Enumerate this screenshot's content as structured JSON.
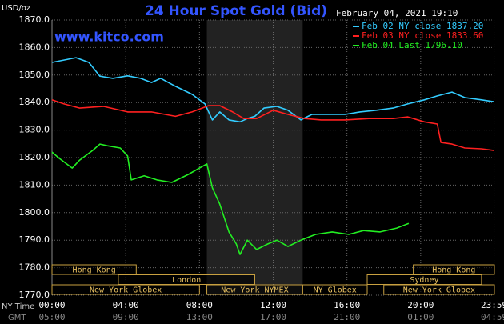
{
  "chart_data": {
    "type": "line",
    "title": "24 Hour Spot Gold (Bid)",
    "subtitle": "www.kitco.com",
    "y_label": "USD/oz",
    "timestamp": "February 04, 2021 19:10",
    "x_label": "NY Time",
    "x2_label": "GMT",
    "xlim": [
      0,
      24
    ],
    "ylim": [
      1770,
      1870
    ],
    "grid": true,
    "yticks": [
      {
        "value": 1770,
        "label": "1770.0"
      },
      {
        "value": 1780,
        "label": "1780.0"
      },
      {
        "value": 1790,
        "label": "1790.0"
      },
      {
        "value": 1800,
        "label": "1800.0"
      },
      {
        "value": 1810,
        "label": "1810.0"
      },
      {
        "value": 1820,
        "label": "1820.0"
      },
      {
        "value": 1830,
        "label": "1830.0"
      },
      {
        "value": 1840,
        "label": "1840.0"
      },
      {
        "value": 1850,
        "label": "1850.0"
      },
      {
        "value": 1860,
        "label": "1860.0"
      },
      {
        "value": 1870,
        "label": "1870.0"
      }
    ],
    "xticks": [
      {
        "value": 0,
        "label": "00:00"
      },
      {
        "value": 4,
        "label": "04:00"
      },
      {
        "value": 8,
        "label": "08:00"
      },
      {
        "value": 12,
        "label": "12:00"
      },
      {
        "value": 16,
        "label": "16:00"
      },
      {
        "value": 20,
        "label": "20:00"
      },
      {
        "value": 23.98,
        "label": "23:59"
      }
    ],
    "x2ticks": [
      {
        "value": 0,
        "label": "05:00"
      },
      {
        "value": 4,
        "label": "09:00"
      },
      {
        "value": 8,
        "label": "13:00"
      },
      {
        "value": 12,
        "label": "17:00"
      },
      {
        "value": 16,
        "label": "21:00"
      },
      {
        "value": 20,
        "label": "01:00"
      },
      {
        "value": 23.98,
        "label": "04:59"
      }
    ],
    "shaded_xlim": [
      8.4,
      13.6
    ],
    "sessions": [
      [
        {
          "label": "Hong Kong",
          "start": 0,
          "end": 4.57
        },
        {
          "label": "Hong Kong",
          "start": 19.6,
          "end": 24
        }
      ],
      [
        {
          "label": "London",
          "start": 3.6,
          "end": 11.0
        },
        {
          "label": "Sydney",
          "start": 17.1,
          "end": 23.3
        }
      ],
      [
        {
          "label": "New York Globex",
          "start": 0,
          "end": 8.0
        },
        {
          "label": "New York NYMEX",
          "start": 8.4,
          "end": 13.6
        },
        {
          "label": "NY Globex",
          "start": 13.6,
          "end": 17.1
        },
        {
          "label": "New York Globex",
          "start": 18.0,
          "end": 24
        }
      ]
    ],
    "series": [
      {
        "name": "Feb 02 NY close 1837.20",
        "color": "#33ccff",
        "x": [
          0,
          1.3,
          2,
          2.6,
          3.3,
          4.1,
          4.8,
          5.4,
          5.9,
          6.7,
          7.6,
          8.3,
          8.7,
          9.1,
          9.6,
          10.2,
          10.6,
          11,
          11.5,
          12.2,
          12.8,
          13.5,
          14.1,
          15,
          15.9,
          16.7,
          17.6,
          18.5,
          19.3,
          20.2,
          20.9,
          21.7,
          22.4,
          23.3,
          23.98
        ],
        "values": [
          1854.6,
          1856.3,
          1854.6,
          1849.6,
          1848.8,
          1849.7,
          1848.8,
          1847.3,
          1848.8,
          1845.9,
          1843,
          1839.5,
          1833.7,
          1836.6,
          1833.7,
          1833,
          1834.2,
          1835,
          1838,
          1838.6,
          1837.2,
          1833.7,
          1835.7,
          1835.7,
          1835.7,
          1836.6,
          1837.2,
          1838,
          1839.5,
          1841,
          1842.4,
          1843.8,
          1841.8,
          1841,
          1840.3
        ]
      },
      {
        "name": "Feb 03 NY close 1833.60",
        "color": "#ff2020",
        "x": [
          0,
          0.65,
          1.5,
          2.8,
          4.1,
          5.4,
          6.7,
          7.6,
          8.5,
          9.1,
          9.8,
          10.4,
          11.1,
          12,
          12.8,
          13.7,
          14.6,
          15.9,
          17.2,
          18.5,
          19.3,
          20.2,
          20.9,
          21.1,
          21.7,
          22.4,
          23.3,
          23.98
        ],
        "values": [
          1841,
          1839.5,
          1838,
          1838.6,
          1836.6,
          1836.6,
          1835,
          1836.6,
          1838.9,
          1838.9,
          1836.6,
          1834.2,
          1834.2,
          1837.2,
          1835.7,
          1834.2,
          1833.7,
          1833.7,
          1834.2,
          1834.2,
          1834.8,
          1833,
          1832.2,
          1825.5,
          1824.9,
          1823.5,
          1823.2,
          1822.6
        ]
      },
      {
        "name": "Feb 04 Last 1796.10",
        "color": "#22ee22",
        "x": [
          0,
          0.4,
          1.1,
          1.5,
          2.2,
          2.6,
          3,
          3.7,
          4.1,
          4.3,
          5,
          5.7,
          6.5,
          7.4,
          8,
          8.4,
          8.7,
          9.1,
          9.6,
          10,
          10.2,
          10.6,
          11.1,
          11.7,
          12.2,
          12.8,
          13.5,
          14.3,
          15.2,
          16.1,
          16.9,
          17.8,
          18.7,
          19.35
        ],
        "values": [
          1822,
          1819.7,
          1816.2,
          1819.1,
          1822.6,
          1824.9,
          1824.3,
          1823.5,
          1820.6,
          1811.9,
          1813.4,
          1811.9,
          1811,
          1813.9,
          1816.2,
          1817.7,
          1809,
          1803.1,
          1793,
          1788.6,
          1784.8,
          1790,
          1786.6,
          1788.6,
          1790,
          1787.7,
          1790,
          1792.1,
          1793,
          1792.1,
          1793.5,
          1793,
          1794.4,
          1796.1
        ]
      }
    ]
  }
}
